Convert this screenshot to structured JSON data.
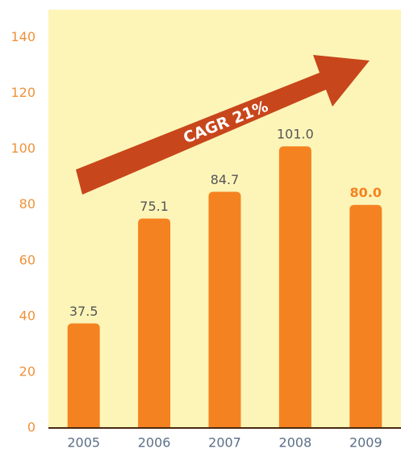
{
  "chart_data": {
    "type": "bar",
    "categories": [
      "2005",
      "2006",
      "2007",
      "2008",
      "2009"
    ],
    "values": [
      37.5,
      75.1,
      84.7,
      101.0,
      80.0
    ],
    "value_labels": [
      "37.5",
      "75.1",
      "84.7",
      "101.0",
      "80.0"
    ],
    "color": "#f58220",
    "ylim": [
      0,
      150
    ],
    "yticks": [
      0,
      20,
      40,
      60,
      80,
      100,
      120,
      140
    ],
    "annotation": "CAGR 21%"
  }
}
